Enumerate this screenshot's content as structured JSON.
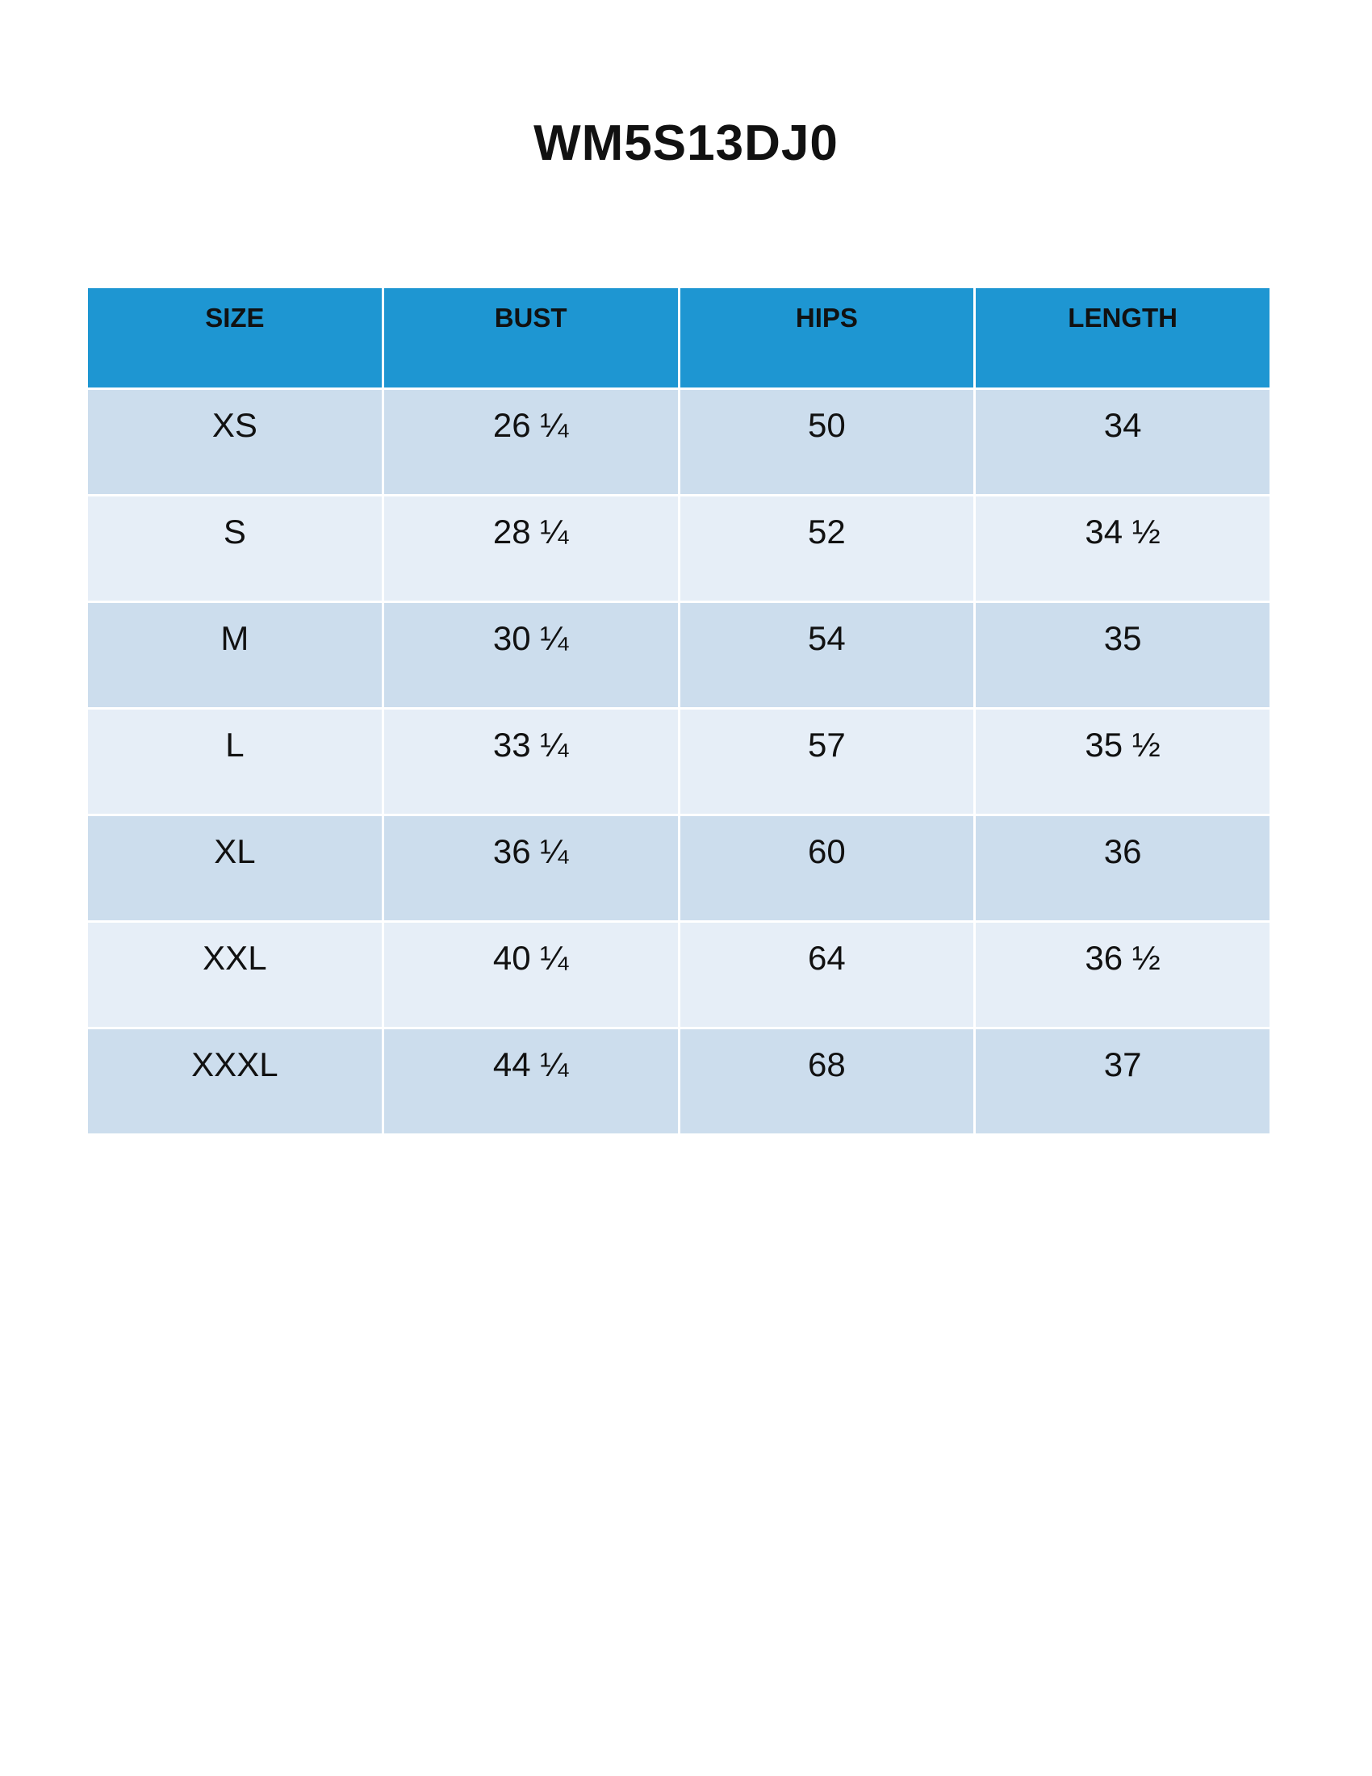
{
  "header": {
    "title": "WM5S13DJ0"
  },
  "table": {
    "columns": [
      "SIZE",
      "BUST",
      "HIPS",
      "LENGTH"
    ],
    "rows": [
      [
        "XS",
        "26 ¼",
        "50",
        "34"
      ],
      [
        "S",
        "28 ¼",
        "52",
        "34 ½"
      ],
      [
        "M",
        "30 ¼",
        "54",
        "35"
      ],
      [
        "L",
        "33 ¼",
        "57",
        "35 ½"
      ],
      [
        "XL",
        "36 ¼",
        "60",
        "36"
      ],
      [
        "XXL",
        "40 ¼",
        "64",
        "36 ½"
      ],
      [
        "XXXL",
        "44 ¼",
        "68",
        "37"
      ]
    ]
  }
}
